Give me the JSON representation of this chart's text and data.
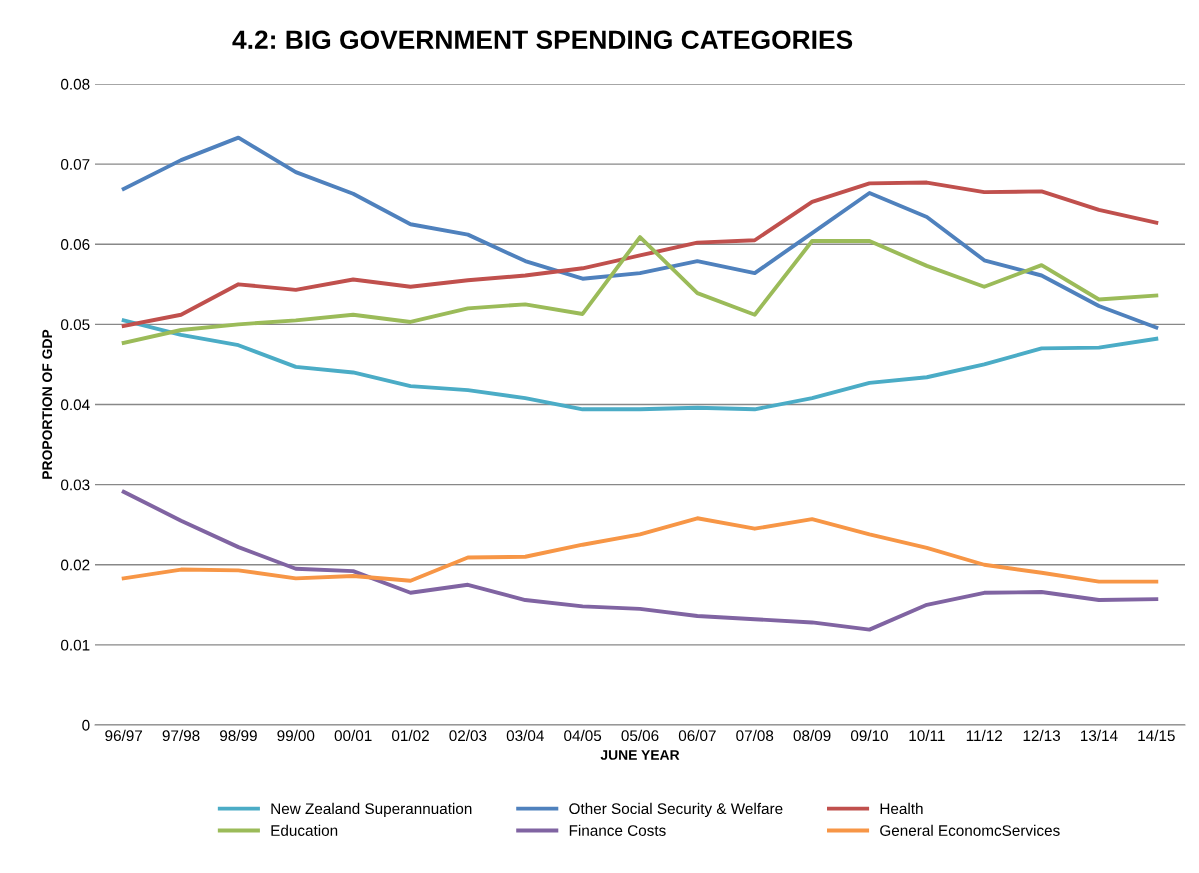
{
  "chart_data": {
    "type": "line",
    "title": "4.2: BIG GOVERNMENT SPENDING CATEGORIES",
    "xlabel": "JUNE YEAR",
    "ylabel": "PROPORTION OF GDP",
    "categories": [
      "96/97",
      "97/98",
      "98/99",
      "99/00",
      "00/01",
      "01/02",
      "02/03",
      "03/04",
      "04/05",
      "05/06",
      "06/07",
      "07/08",
      "08/09",
      "09/10",
      "10/11",
      "11/12",
      "12/13",
      "13/14",
      "14/15"
    ],
    "series": [
      {
        "name": "New Zealand Superannuation",
        "color": "#4bacc6",
        "values": [
          0.0505,
          0.0487,
          0.0474,
          0.0447,
          0.044,
          0.0423,
          0.0418,
          0.0408,
          0.0394,
          0.0394,
          0.0396,
          0.0394,
          0.0408,
          0.0427,
          0.0434,
          0.045,
          0.047,
          0.0471,
          0.0482
        ]
      },
      {
        "name": "Other Social Security & Welfare",
        "color": "#4f81bd",
        "values": [
          0.0669,
          0.0705,
          0.0733,
          0.069,
          0.0663,
          0.0625,
          0.0612,
          0.0579,
          0.0557,
          0.0564,
          0.0579,
          0.0564,
          0.0614,
          0.0664,
          0.0634,
          0.058,
          0.0561,
          0.0523,
          0.0496
        ]
      },
      {
        "name": "Health",
        "color": "#c0504d",
        "values": [
          0.0498,
          0.0512,
          0.055,
          0.0543,
          0.0556,
          0.0547,
          0.0555,
          0.0561,
          0.057,
          0.0586,
          0.0602,
          0.0605,
          0.0653,
          0.0676,
          0.0677,
          0.0665,
          0.0666,
          0.0643,
          0.0627
        ]
      },
      {
        "name": "Education",
        "color": "#9bbb59",
        "values": [
          0.0477,
          0.0493,
          0.05,
          0.0505,
          0.0512,
          0.0503,
          0.052,
          0.0525,
          0.0513,
          0.0609,
          0.0539,
          0.0512,
          0.0604,
          0.0604,
          0.0573,
          0.0547,
          0.0574,
          0.0531,
          0.0536
        ]
      },
      {
        "name": "Finance Costs",
        "color": "#8064a2",
        "values": [
          0.0291,
          0.0255,
          0.0222,
          0.0195,
          0.0192,
          0.0165,
          0.0175,
          0.0156,
          0.0148,
          0.0145,
          0.0136,
          0.0132,
          0.0128,
          0.0119,
          0.015,
          0.0165,
          0.0166,
          0.0156,
          0.0157
        ]
      },
      {
        "name": "General EconomcServices",
        "color": "#f79646",
        "values": [
          0.0183,
          0.0194,
          0.0193,
          0.0183,
          0.0186,
          0.018,
          0.0209,
          0.021,
          0.0225,
          0.0238,
          0.0258,
          0.0245,
          0.0257,
          0.0238,
          0.0221,
          0.02,
          0.019,
          0.0179,
          0.0179
        ]
      }
    ],
    "ylim": [
      0,
      0.08
    ],
    "yticks": [
      0,
      0.01,
      0.02,
      0.03,
      0.04,
      0.05,
      0.06,
      0.07,
      0.08
    ],
    "grid": "y",
    "legend": "bottom",
    "marker": "none",
    "line_style": "solid"
  }
}
